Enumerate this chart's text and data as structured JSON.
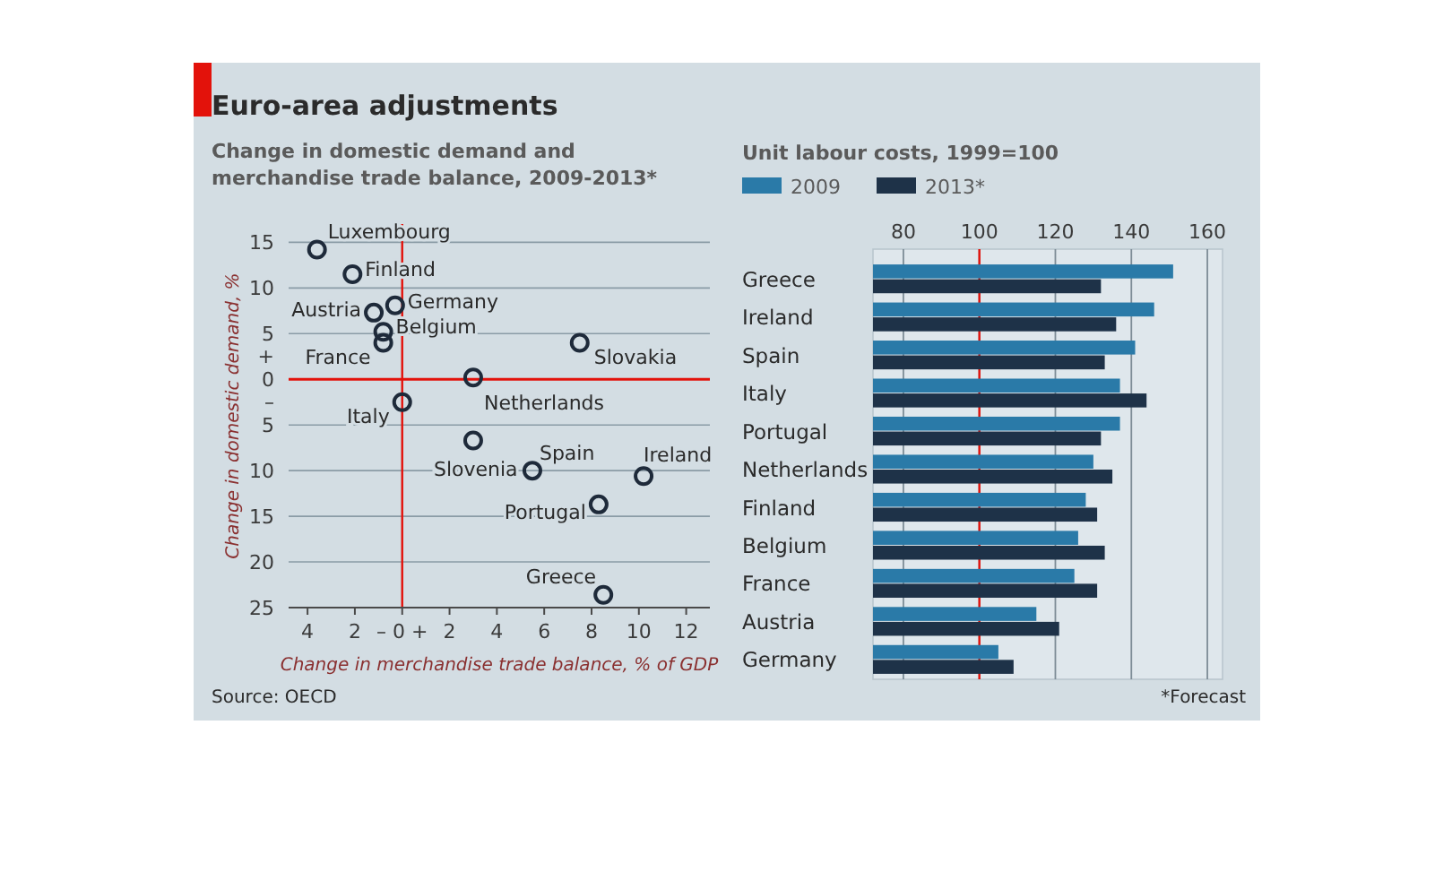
{
  "chart_data": [
    {
      "type": "scatter",
      "title": "Euro-area adjustments",
      "subtitle": "Change in domestic demand and merchandise trade balance, 2009-2013*",
      "xlabel": "Change in merchandise trade balance, % of GDP",
      "ylabel": "Change in domestic demand, %",
      "x": [
        -3.6,
        -2.1,
        -1.2,
        -0.3,
        -0.8,
        -0.8,
        7.5,
        3.0,
        0,
        3.0,
        5.5,
        10.2,
        8.3,
        8.5
      ],
      "values": [
        14.2,
        11.5,
        7.3,
        8.1,
        5.2,
        4.0,
        4.0,
        0.2,
        -2.5,
        -6.7,
        -10,
        -10.6,
        -13.7,
        -23.6
      ],
      "color": "#1e2a3a",
      "marker": "circle",
      "xlim": [
        -4.8,
        13
      ],
      "ylim": [
        -25,
        17
      ],
      "xticks": [
        {
          "value": -4,
          "label": "4"
        },
        {
          "value": -2,
          "label": "2"
        },
        {
          "value": 0,
          "label": "– 0 +"
        },
        2,
        4,
        6,
        8,
        10,
        12
      ],
      "yticks": [
        15,
        10,
        5,
        {
          "value": 2.5,
          "label": "+"
        },
        0,
        {
          "value": -2.5,
          "label": "–"
        },
        {
          "value": -5,
          "label": "5"
        },
        {
          "value": -10,
          "label": "10"
        },
        {
          "value": -15,
          "label": "15"
        },
        {
          "value": -20,
          "label": "20"
        },
        {
          "value": -25,
          "label": "25"
        }
      ],
      "grid": "y",
      "ref_lines": [
        {
          "axis": "x",
          "value": 0,
          "color": "#e3120b"
        },
        {
          "axis": "y",
          "value": 0,
          "color": "#e3120b"
        }
      ],
      "annotations": [
        {
          "text": "Luxembourg",
          "x": -3.6,
          "y": 14.2
        },
        {
          "text": "Finland",
          "x": -2.1,
          "y": 11.5
        },
        {
          "text": "Austria",
          "x": -1.2,
          "y": 7.3
        },
        {
          "text": "Germany",
          "x": -0.3,
          "y": 8.1
        },
        {
          "text": "Belgium",
          "x": -0.8,
          "y": 5.2
        },
        {
          "text": "France",
          "x": -0.8,
          "y": 4.0
        },
        {
          "text": "Slovakia",
          "x": 7.5,
          "y": 4.0
        },
        {
          "text": "Netherlands",
          "x": 3.0,
          "y": 0.2
        },
        {
          "text": "Italy",
          "x": 0,
          "y": -2.5
        },
        {
          "text": "Slovenia",
          "x": 3.0,
          "y": -6.7
        },
        {
          "text": "Spain",
          "x": 5.5,
          "y": -10
        },
        {
          "text": "Ireland",
          "x": 10.2,
          "y": -10.6
        },
        {
          "text": "Portugal",
          "x": 8.3,
          "y": -13.7
        },
        {
          "text": "Greece",
          "x": 8.5,
          "y": -23.6
        },
        "Source: OECD"
      ]
    },
    {
      "type": "bar",
      "orientation": "horizontal",
      "title": "Unit labour costs, 1999=100",
      "categories": [
        "Greece",
        "Ireland",
        "Spain",
        "Italy",
        "Portugal",
        "Netherlands",
        "Finland",
        "Belgium",
        "France",
        "Austria",
        "Germany"
      ],
      "series": [
        {
          "name": "2009",
          "color": "#2a7aa8",
          "values": [
            151,
            146,
            141,
            137,
            137,
            130,
            128,
            126,
            125,
            115,
            105
          ]
        },
        {
          "name": "2013*",
          "color": "#1e3248",
          "values": [
            132,
            136,
            133,
            144,
            132,
            135,
            131,
            133,
            131,
            121,
            109
          ]
        }
      ],
      "xlim": [
        72,
        164
      ],
      "xticks": [
        80,
        100,
        120,
        140,
        160
      ],
      "grid": "x",
      "legend": "top left",
      "ref_lines": [
        {
          "axis": "x",
          "value": 100,
          "color": "#e3120b"
        }
      ],
      "annotations": [
        "*Forecast"
      ]
    }
  ]
}
